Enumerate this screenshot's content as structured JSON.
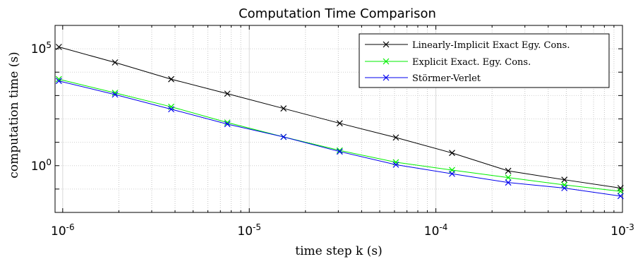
{
  "chart_data": {
    "type": "line",
    "title": "Computation Time Comparison",
    "xlabel": "time step k (s)",
    "ylabel": "computation time (s)",
    "xscale": "log",
    "yscale": "log",
    "xlim": [
      9.1e-07,
      0.001
    ],
    "ylim": [
      0.01,
      1000000
    ],
    "grid": true,
    "legend_position": "top-right",
    "x_ticks": [
      {
        "value": 1e-06,
        "base": "10",
        "exp": "-6"
      },
      {
        "value": 1e-05,
        "base": "10",
        "exp": "-5"
      },
      {
        "value": 0.0001,
        "base": "10",
        "exp": "-4"
      },
      {
        "value": 0.001,
        "base": "10",
        "exp": "-3"
      }
    ],
    "y_ticks": [
      {
        "value": 1,
        "base": "10",
        "exp": "0"
      },
      {
        "value": 100000,
        "base": "10",
        "exp": "5"
      }
    ],
    "x": [
      9.5367e-07,
      1.9073e-06,
      3.8147e-06,
      7.6294e-06,
      1.5259e-05,
      3.0518e-05,
      6.1035e-05,
      0.00012207,
      0.00024414,
      0.00048828,
      0.00097656
    ],
    "series": [
      {
        "name": "Linearly-Implicit Exact Egy. Cons.",
        "color": "#000000",
        "values": [
          120000,
          26000,
          5000,
          1200,
          280,
          65,
          16,
          3.5,
          0.6,
          0.25,
          0.11
        ]
      },
      {
        "name": "Explicit Exact. Egy. Cons.",
        "color": "#00ee00",
        "values": [
          5000,
          1300,
          330,
          70,
          17,
          4.5,
          1.4,
          0.65,
          0.31,
          0.15,
          0.08
        ]
      },
      {
        "name": "Störmer-Verlet",
        "color": "#0000ee",
        "values": [
          4200,
          1100,
          260,
          60,
          17,
          4,
          1.1,
          0.45,
          0.19,
          0.11,
          0.05
        ]
      }
    ]
  }
}
